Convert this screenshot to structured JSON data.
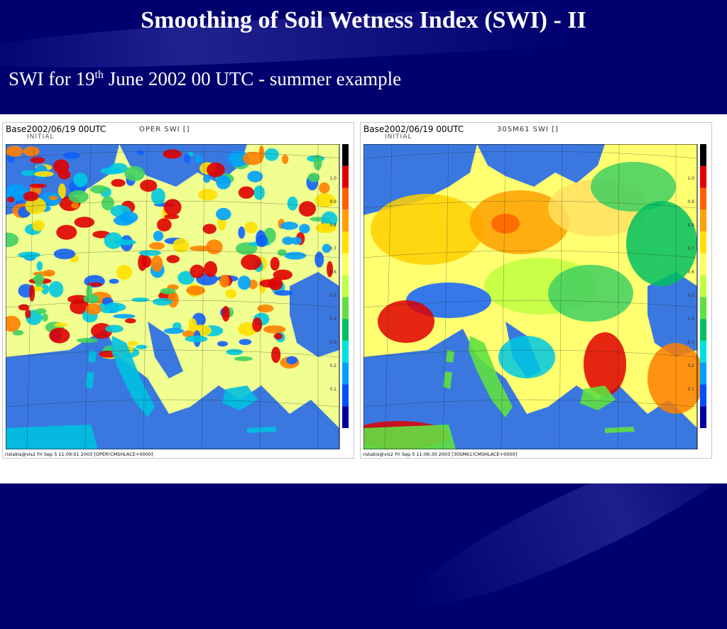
{
  "slide": {
    "title": "Smoothing of Soil Wetness Index (SWI) - II",
    "subtitle_prefix": "SWI for 19",
    "subtitle_sup": "th",
    "subtitle_suffix": " June 2002 00 UTC - summer example"
  },
  "maps": [
    {
      "base_label": "Base",
      "date": "2002/06/19 00UTC",
      "run_type": "INITIAL",
      "field": "OPER  SWI  []",
      "footer": "ristakis@vis2 Fri Sep  5 11:09:01 2003 [OPER!CMSHLACE+0000]",
      "pattern": "noisy"
    },
    {
      "base_label": "Base",
      "date": "2002/06/19 00UTC",
      "run_type": "INITIAL",
      "field": "30SM61  SWI  []",
      "footer": "ristakis@vis2 Fri Sep  5 11:06:30 2003 [30SM61!CMSHLACE+0000]",
      "pattern": "smooth"
    }
  ],
  "scale": {
    "colors": [
      "#0000a0",
      "#0050ff",
      "#00a0ff",
      "#00e0e0",
      "#00c060",
      "#60e040",
      "#c0ff40",
      "#ffff60",
      "#ffe000",
      "#ffa000",
      "#ff6000",
      "#e00000",
      "#000000"
    ],
    "ticks": [
      "1.0",
      "0.9",
      "0.8",
      "0.7",
      "0.6",
      "0.5",
      "0.4",
      "0.3",
      "0.2",
      "0.1"
    ]
  }
}
